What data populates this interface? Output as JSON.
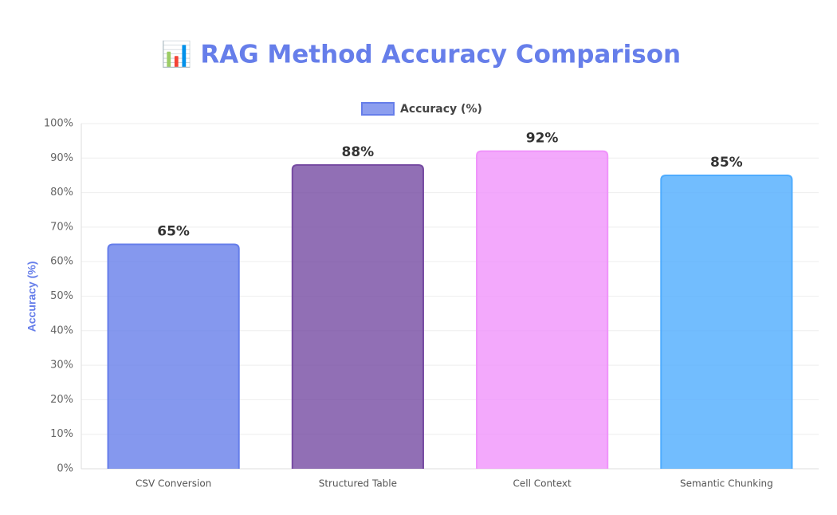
{
  "chart_data": {
    "type": "bar",
    "title": "📊 RAG Method Accuracy Comparison",
    "y_label": "Accuracy (%)",
    "categories": [
      "CSV Conversion",
      "Structured Table",
      "Cell Context",
      "Semantic Chunking"
    ],
    "series": [
      {
        "name": "Accuracy (%)",
        "colors": [
          "#667eea",
          "#764ba2",
          "#f093fb",
          "#4facfe"
        ],
        "values": [
          65,
          88,
          92,
          85
        ],
        "value_labels": [
          "65%",
          "88%",
          "92%",
          "85%"
        ]
      }
    ],
    "ylim": [
      0,
      100
    ],
    "yticks": [
      {
        "value": 0,
        "label": "0%"
      },
      {
        "value": 10,
        "label": "10%"
      },
      {
        "value": 20,
        "label": "20%"
      },
      {
        "value": 30,
        "label": "30%"
      },
      {
        "value": 40,
        "label": "40%"
      },
      {
        "value": 50,
        "label": "50%"
      },
      {
        "value": 60,
        "label": "60%"
      },
      {
        "value": 70,
        "label": "70%"
      },
      {
        "value": 80,
        "label": "80%"
      },
      {
        "value": 90,
        "label": "90%"
      },
      {
        "value": 100,
        "label": "100%"
      }
    ],
    "grid": true,
    "legend": "top"
  }
}
